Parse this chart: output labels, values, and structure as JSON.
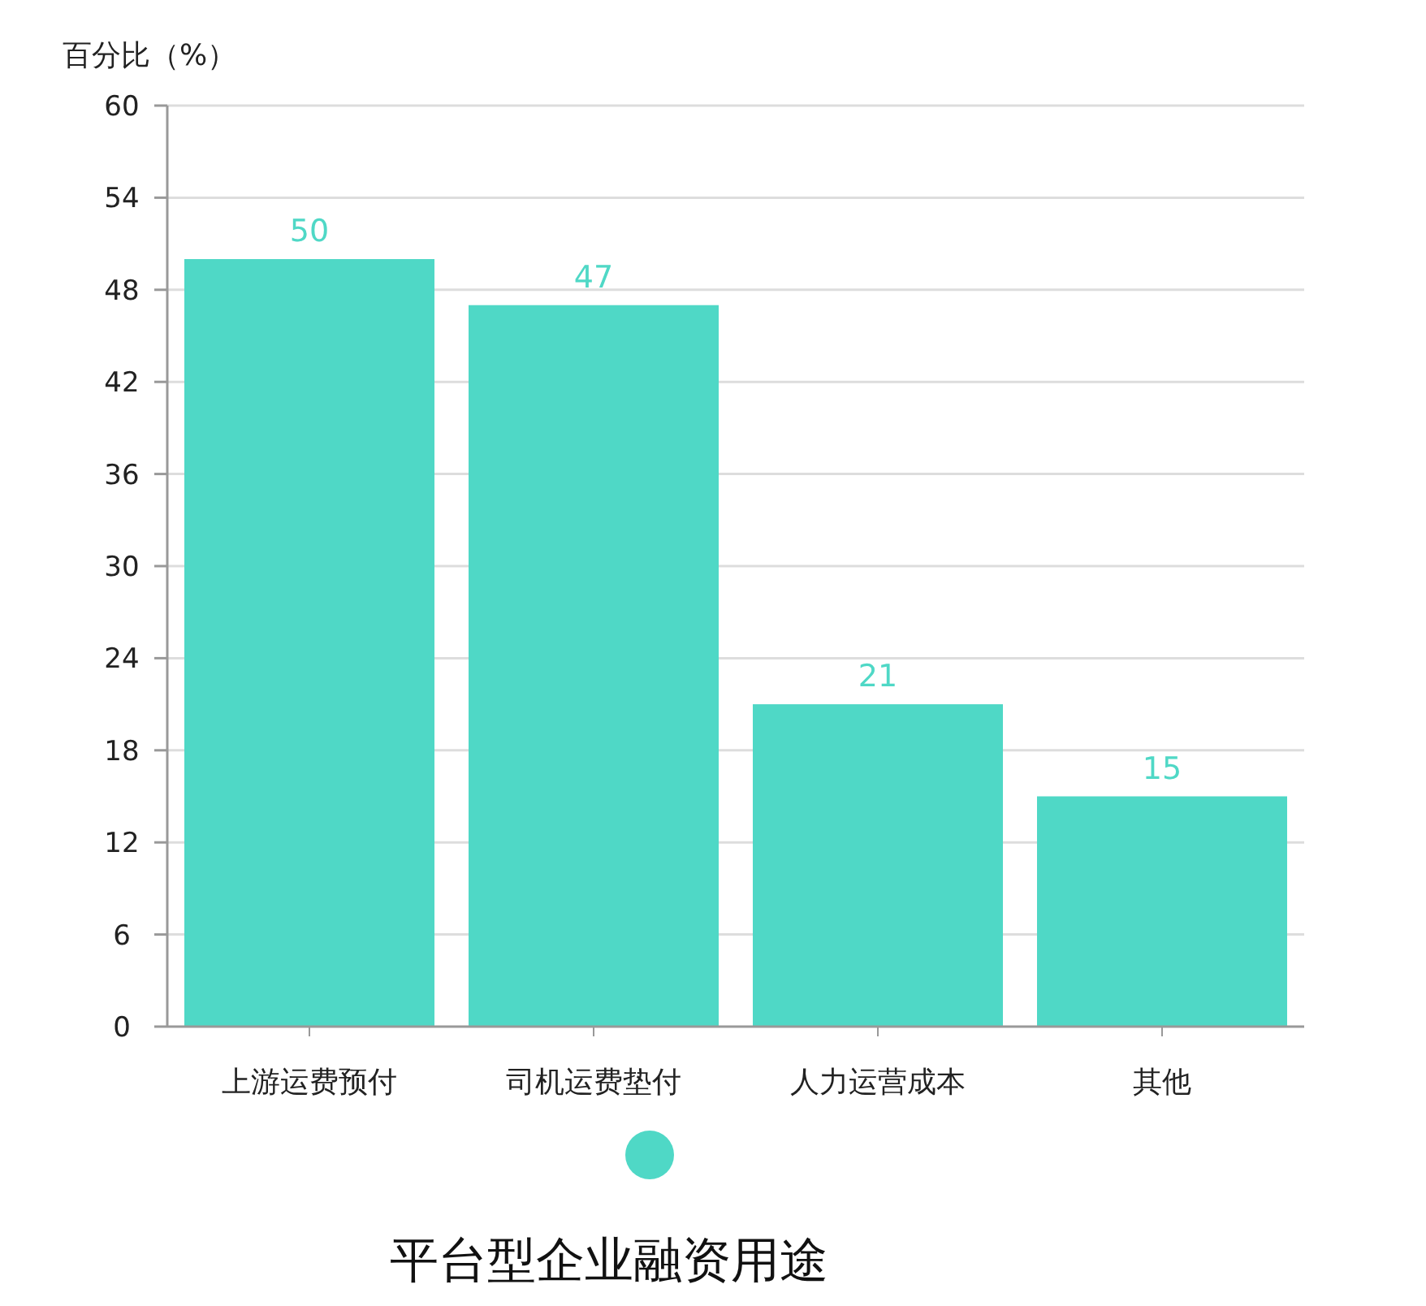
{
  "chart_data": {
    "type": "bar",
    "title": "平台型企业融资用途",
    "ylabel": "百分比（%）",
    "categories": [
      "上游运费预付",
      "司机运费垫付",
      "人力运营成本",
      "其他"
    ],
    "series": [
      {
        "color": "#4fd8c6",
        "values": [
          50,
          47,
          21,
          15
        ]
      }
    ],
    "ylim": [
      0,
      60
    ],
    "yticks": [
      0,
      6,
      12,
      18,
      24,
      30,
      36,
      42,
      48,
      54,
      60
    ],
    "grid": "y",
    "data_labels": true
  }
}
